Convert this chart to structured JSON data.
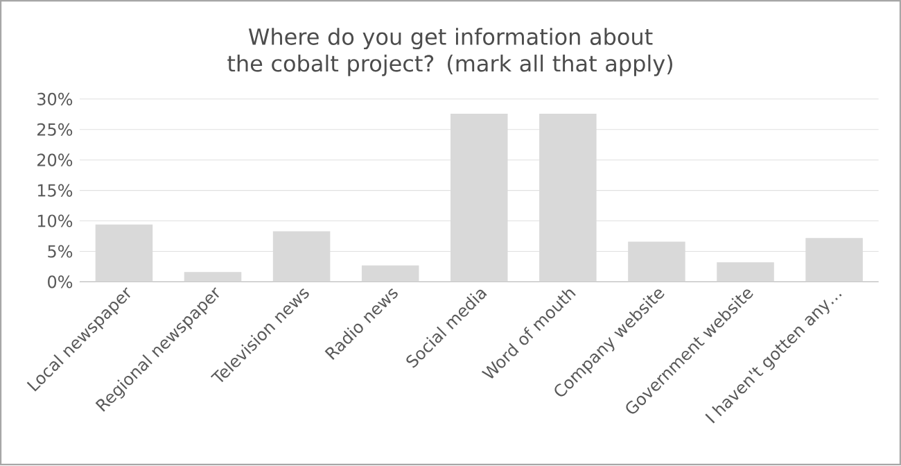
{
  "chart_data": {
    "type": "bar",
    "title": "Where do you get information about the cobalt project? (mark all that apply)",
    "categories": [
      "Local newspaper",
      "Regional newspaper",
      "Television news",
      "Radio news",
      "Social media",
      "Word of mouth",
      "Company website",
      "Government website",
      "I haven't gotten any…"
    ],
    "values": [
      9.4,
      1.6,
      8.3,
      2.7,
      27.6,
      27.6,
      6.6,
      3.2,
      7.2
    ],
    "color": "#d9d9d9",
    "ylim": [
      0,
      30
    ],
    "yticks": [
      {
        "value": 0,
        "label": "0%"
      },
      {
        "value": 5,
        "label": "5%"
      },
      {
        "value": 10,
        "label": "10%"
      },
      {
        "value": 15,
        "label": "15%"
      },
      {
        "value": 20,
        "label": "20%"
      },
      {
        "value": 25,
        "label": "25%"
      },
      {
        "value": 30,
        "label": "30%"
      }
    ],
    "grid": "y"
  }
}
